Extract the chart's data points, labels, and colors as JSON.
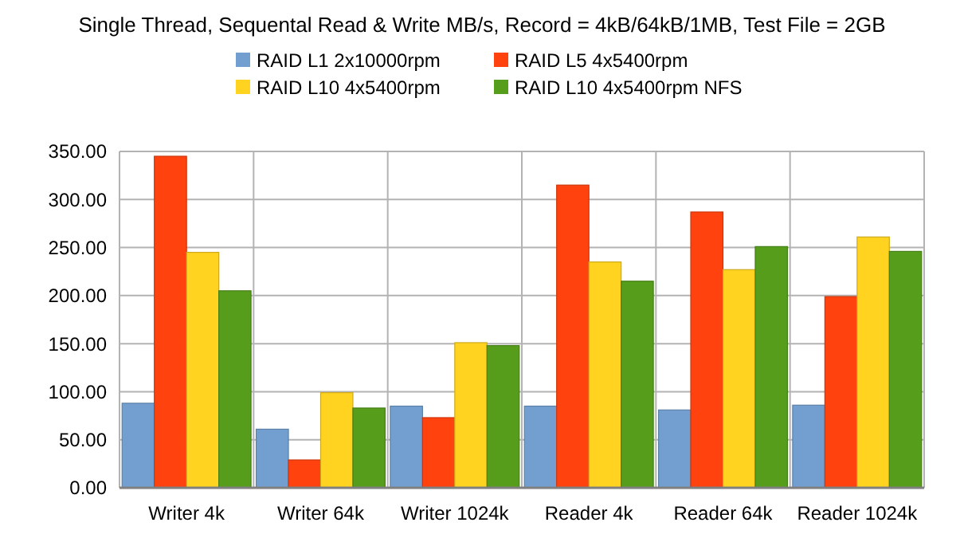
{
  "chart_data": {
    "type": "bar",
    "title": "Single Thread, Sequental Read & Write MB/s, Record = 4kB/64kB/1MB, Test File = 2GB",
    "categories": [
      "Writer 4k",
      "Writer 64k",
      "Writer 1024k",
      "Reader 4k",
      "Reader 64k",
      "Reader 1024k"
    ],
    "series": [
      {
        "name": "RAID L1 2x10000rpm",
        "color": "#729fcf",
        "values": [
          88,
          61,
          85,
          85,
          81,
          86
        ]
      },
      {
        "name": "RAID L5 4x5400rpm",
        "color": "#ff420e",
        "values": [
          345,
          29,
          73,
          315,
          287,
          199
        ]
      },
      {
        "name": "RAID L10 4x5400rpm",
        "color": "#ffd320",
        "values": [
          245,
          99,
          151,
          235,
          227,
          261
        ]
      },
      {
        "name": "RAID L10 4x5400rpm NFS",
        "color": "#579d1c",
        "values": [
          205,
          83,
          148,
          215,
          251,
          246
        ]
      }
    ],
    "ylim": [
      0,
      350
    ],
    "yticks": [
      {
        "value": 0,
        "label": "0.00"
      },
      {
        "value": 50,
        "label": "50.00"
      },
      {
        "value": 100,
        "label": "100.00"
      },
      {
        "value": 150,
        "label": "150.00"
      },
      {
        "value": 200,
        "label": "200.00"
      },
      {
        "value": 250,
        "label": "250.00"
      },
      {
        "value": 300,
        "label": "300.00"
      },
      {
        "value": 350,
        "label": "350.00"
      }
    ],
    "grid": true,
    "legend": "top"
  }
}
